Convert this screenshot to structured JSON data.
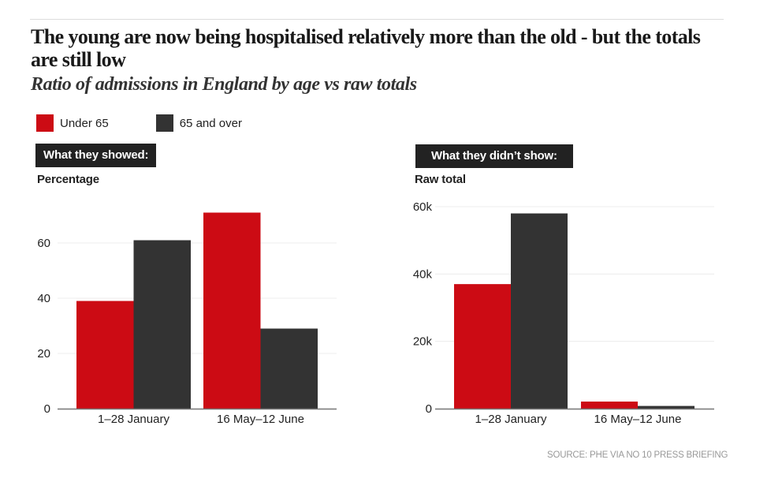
{
  "header": {
    "title": "The young are now being hospitalised relatively more than the old - but the totals are still low",
    "subtitle": "Ratio of admissions in England by age vs raw totals"
  },
  "legend": [
    {
      "label": "Under 65",
      "color": "#cc0b14"
    },
    {
      "label": "65 and over",
      "color": "#333333"
    }
  ],
  "panels": [
    {
      "tag": "What they showed:",
      "unit": "Percentage"
    },
    {
      "tag": "What they didn’t show:",
      "unit": "Raw total"
    }
  ],
  "source": "SOURCE: PHE VIA NO 10 PRESS BRIEFING",
  "chart_data": [
    {
      "type": "bar",
      "title": "What they showed:",
      "ylabel": "Percentage",
      "xlabel": "",
      "categories": [
        "1–28 January",
        "16 May–12 June"
      ],
      "series": [
        {
          "name": "Under 65",
          "color": "#cc0b14",
          "values": [
            39,
            71
          ]
        },
        {
          "name": "65 and over",
          "color": "#333333",
          "values": [
            61,
            29
          ]
        }
      ],
      "ylim": [
        0,
        74
      ],
      "yticks": [
        0,
        20,
        40,
        60
      ],
      "ytick_labels": [
        "0",
        "20",
        "40",
        "60"
      ],
      "grid": true,
      "legend": "top-left"
    },
    {
      "type": "bar",
      "title": "What they didn’t show:",
      "ylabel": "Raw total",
      "xlabel": "",
      "categories": [
        "1–28 January",
        "16 May–12 June"
      ],
      "series": [
        {
          "name": "Under 65",
          "color": "#cc0b14",
          "values": [
            37000,
            2100
          ]
        },
        {
          "name": "65 and over",
          "color": "#333333",
          "values": [
            58000,
            800
          ]
        }
      ],
      "ylim": [
        0,
        62000
      ],
      "yticks": [
        0,
        20000,
        40000,
        60000
      ],
      "ytick_labels": [
        "0",
        "20k",
        "40k",
        "60k"
      ],
      "grid": true,
      "legend": "top-left"
    }
  ]
}
